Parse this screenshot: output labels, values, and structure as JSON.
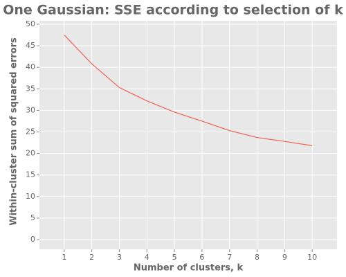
{
  "chart_data": {
    "type": "line",
    "title": "One Gaussian: SSE according to selection of k",
    "x_label": "Number of clusters, k",
    "y_label": "Within-cluster sum of squared errors",
    "x": [
      1,
      2,
      3,
      4,
      5,
      6,
      7,
      8,
      9,
      10
    ],
    "series": [
      {
        "name": "SSE",
        "color": "#f0604f",
        "values": [
          47.5,
          40.8,
          35.3,
          32.2,
          29.6,
          27.5,
          25.3,
          23.7,
          22.8,
          21.8
        ]
      }
    ],
    "xlim": [
      0.1,
      10.9
    ],
    "ylim": [
      -2.25,
      50.8
    ],
    "xticks": [
      1,
      2,
      3,
      4,
      5,
      6,
      7,
      8,
      9,
      10
    ],
    "yticks": [
      0,
      5,
      10,
      15,
      20,
      25,
      30,
      35,
      40,
      45,
      50
    ],
    "grid": true
  }
}
